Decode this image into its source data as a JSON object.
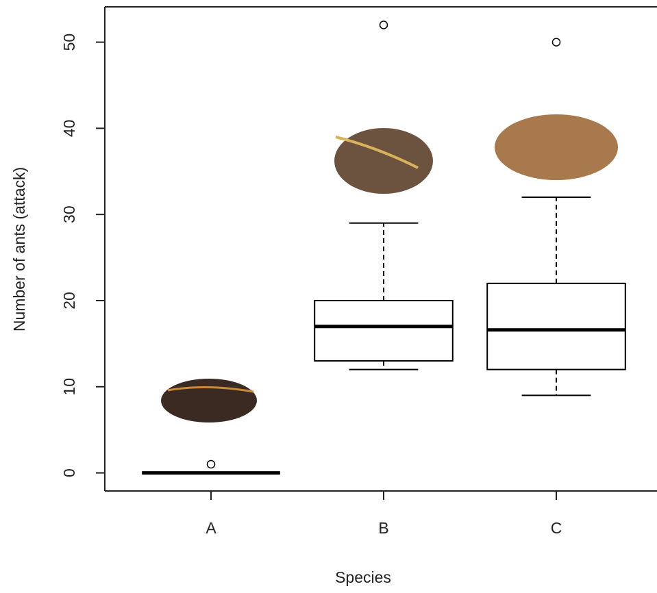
{
  "chart_data": {
    "type": "box",
    "x_label": "Species",
    "y_label": "Number of ants (attack)",
    "categories": [
      "A",
      "B",
      "C"
    ],
    "boxes": [
      {
        "min": 0,
        "q1": 0,
        "median": 0,
        "q3": 0,
        "max": 0,
        "outliers": [
          1
        ]
      },
      {
        "min": 12,
        "q1": 13,
        "median": 17,
        "q3": 20,
        "max": 29,
        "outliers": [
          52
        ]
      },
      {
        "min": 9,
        "q1": 12,
        "median": 16.6,
        "q3": 22,
        "max": 32,
        "outliers": [
          50
        ]
      }
    ],
    "color": "#000000",
    "ylim": [
      -2.1,
      54.1
    ],
    "yticks": [
      0,
      10,
      20,
      30,
      40,
      50
    ]
  }
}
